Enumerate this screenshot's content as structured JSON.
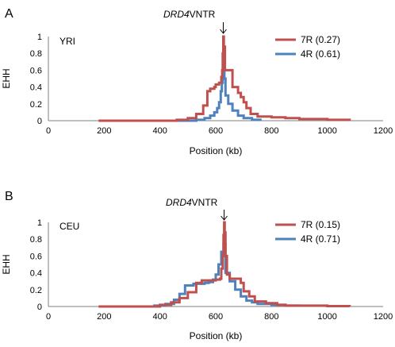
{
  "colors": {
    "red": "#c0504d",
    "blue": "#4f81bd",
    "axis": "#7f7f7f"
  },
  "chart_data": [
    {
      "type": "line",
      "panel_label": "A",
      "population": "YRI",
      "annotation_italic": "DRD4",
      "annotation_rest": "VNTR",
      "annotation_x": 627,
      "xlabel": "Position (kb)",
      "ylabel": "EHH",
      "xlim": [
        0,
        1200
      ],
      "ylim": [
        0,
        1
      ],
      "xticks": [
        "0",
        "200",
        "400",
        "600",
        "800",
        "1000",
        "1200"
      ],
      "yticks": [
        "0",
        "0.2",
        "0.4",
        "0.6",
        "0.8",
        "1"
      ],
      "legend_position": "top-right",
      "grid": false,
      "series": [
        {
          "name": "7R (0.27)",
          "color": "#c0504d",
          "points": [
            [
              180,
              0
            ],
            [
              400,
              0
            ],
            [
              460,
              0.01
            ],
            [
              500,
              0.03
            ],
            [
              530,
              0.08
            ],
            [
              555,
              0.18
            ],
            [
              570,
              0.35
            ],
            [
              580,
              0.38
            ],
            [
              595,
              0.4
            ],
            [
              600,
              0.43
            ],
            [
              612,
              0.45
            ],
            [
              620,
              0.52
            ],
            [
              623,
              0.6
            ],
            [
              625,
              0.8
            ],
            [
              627,
              1.0
            ],
            [
              629,
              0.8
            ],
            [
              631,
              0.88
            ],
            [
              633,
              0.6
            ],
            [
              645,
              0.6
            ],
            [
              655,
              0.6
            ],
            [
              660,
              0.4
            ],
            [
              680,
              0.33
            ],
            [
              690,
              0.28
            ],
            [
              700,
              0.22
            ],
            [
              710,
              0.15
            ],
            [
              725,
              0.08
            ],
            [
              750,
              0.05
            ],
            [
              800,
              0.04
            ],
            [
              850,
              0.03
            ],
            [
              900,
              0.02
            ],
            [
              1000,
              0.01
            ],
            [
              1080,
              0
            ]
          ]
        },
        {
          "name": "4R (0.61)",
          "color": "#4f81bd",
          "points": [
            [
              400,
              0
            ],
            [
              500,
              0
            ],
            [
              530,
              0.01
            ],
            [
              560,
              0.03
            ],
            [
              580,
              0.06
            ],
            [
              595,
              0.1
            ],
            [
              605,
              0.15
            ],
            [
              612,
              0.22
            ],
            [
              618,
              0.35
            ],
            [
              622,
              0.45
            ],
            [
              625,
              0.55
            ],
            [
              628,
              0.62
            ],
            [
              631,
              0.5
            ],
            [
              635,
              0.3
            ],
            [
              645,
              0.2
            ],
            [
              660,
              0.12
            ],
            [
              680,
              0.06
            ],
            [
              700,
              0.03
            ],
            [
              730,
              0.01
            ],
            [
              760,
              0
            ]
          ]
        }
      ]
    },
    {
      "type": "line",
      "panel_label": "B",
      "population": "CEU",
      "annotation_italic": "DRD4",
      "annotation_rest": "VNTR",
      "annotation_x": 630,
      "xlabel": "Position (kb)",
      "ylabel": "EHH",
      "xlim": [
        0,
        1200
      ],
      "ylim": [
        0,
        1
      ],
      "xticks": [
        "0",
        "200",
        "400",
        "600",
        "800",
        "1000",
        "1200"
      ],
      "yticks": [
        "0",
        "0.2",
        "0.4",
        "0.6",
        "0.8",
        "1"
      ],
      "legend_position": "top-right",
      "grid": false,
      "series": [
        {
          "name": "7R (0.15)",
          "color": "#c0504d",
          "points": [
            [
              180,
              0
            ],
            [
              350,
              0
            ],
            [
              400,
              0.02
            ],
            [
              440,
              0.05
            ],
            [
              470,
              0.1
            ],
            [
              500,
              0.17
            ],
            [
              530,
              0.28
            ],
            [
              550,
              0.31
            ],
            [
              600,
              0.32
            ],
            [
              615,
              0.33
            ],
            [
              620,
              0.45
            ],
            [
              625,
              0.6
            ],
            [
              628,
              0.85
            ],
            [
              630,
              1.0
            ],
            [
              632,
              0.88
            ],
            [
              635,
              0.6
            ],
            [
              640,
              0.38
            ],
            [
              650,
              0.33
            ],
            [
              680,
              0.33
            ],
            [
              690,
              0.28
            ],
            [
              700,
              0.18
            ],
            [
              720,
              0.12
            ],
            [
              740,
              0.06
            ],
            [
              780,
              0.04
            ],
            [
              820,
              0.02
            ],
            [
              850,
              0.01
            ],
            [
              900,
              0.01
            ],
            [
              1000,
              0.005
            ],
            [
              1080,
              0
            ]
          ]
        },
        {
          "name": "4R (0.71)",
          "color": "#4f81bd",
          "points": [
            [
              340,
              0
            ],
            [
              380,
              0.01
            ],
            [
              420,
              0.03
            ],
            [
              450,
              0.08
            ],
            [
              470,
              0.15
            ],
            [
              490,
              0.25
            ],
            [
              520,
              0.27
            ],
            [
              540,
              0.27
            ],
            [
              560,
              0.28
            ],
            [
              575,
              0.29
            ],
            [
              590,
              0.32
            ],
            [
              600,
              0.38
            ],
            [
              610,
              0.5
            ],
            [
              620,
              0.65
            ],
            [
              628,
              0.75
            ],
            [
              635,
              0.4
            ],
            [
              650,
              0.3
            ],
            [
              670,
              0.2
            ],
            [
              690,
              0.12
            ],
            [
              710,
              0.07
            ],
            [
              730,
              0.05
            ],
            [
              750,
              0.03
            ],
            [
              800,
              0.02
            ],
            [
              850,
              0.01
            ],
            [
              900,
              0
            ]
          ]
        }
      ]
    }
  ]
}
